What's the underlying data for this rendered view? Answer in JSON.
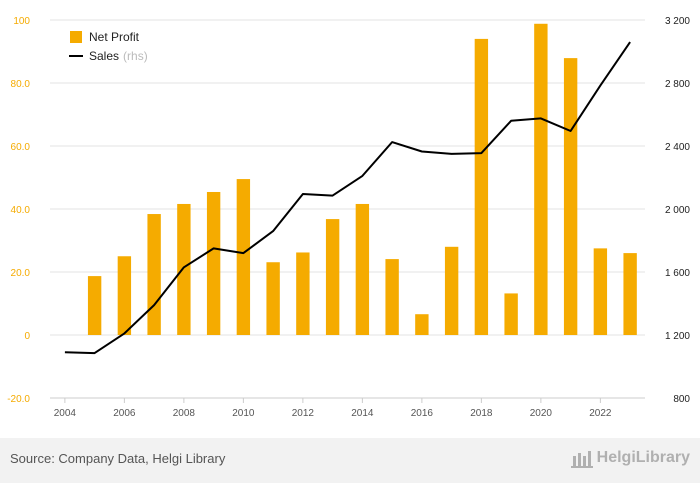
{
  "colors": {
    "bar": "#f5ab00",
    "line": "#000000",
    "left_axis_text": "#f5ab00",
    "right_axis_text": "#222222",
    "grid": "#e3e3e3",
    "footer_bg": "#f2f2f2"
  },
  "legend": {
    "net_profit": "Net Profit",
    "sales": "Sales",
    "sales_suffix": "(rhs)"
  },
  "footer": {
    "source": "Source: Company Data, Helgi Library",
    "brand": "HelgiLibrary",
    "brand_icon": "helgi-library-logo-icon"
  },
  "chart_data": {
    "type": "bar+line",
    "legend_position": "top-left",
    "grid": true,
    "years": [
      2004,
      2005,
      2006,
      2007,
      2008,
      2009,
      2010,
      2011,
      2012,
      2013,
      2014,
      2015,
      2016,
      2017,
      2018,
      2019,
      2020,
      2021,
      2022,
      2023
    ],
    "x_tick_labels": [
      "2004",
      "2006",
      "2008",
      "2010",
      "2012",
      "2014",
      "2016",
      "2018",
      "2020",
      "2022"
    ],
    "series": [
      {
        "name": "Net Profit",
        "type": "bar",
        "axis": "left",
        "values": [
          null,
          18.7,
          25.0,
          38.4,
          41.6,
          45.4,
          49.5,
          23.1,
          26.2,
          36.8,
          41.6,
          24.1,
          6.6,
          28.0,
          94.0,
          13.2,
          98.8,
          87.9,
          27.5,
          26.0
        ]
      },
      {
        "name": "Sales",
        "type": "line",
        "axis": "right",
        "values": [
          1090,
          1085,
          1210,
          1390,
          1630,
          1750,
          1720,
          1860,
          2095,
          2085,
          2210,
          2425,
          2365,
          2350,
          2355,
          2560,
          2575,
          2495,
          2785,
          3060
        ]
      }
    ],
    "y_left": {
      "range": [
        -20,
        100
      ],
      "ticks": [
        "100",
        "80.0",
        "60.0",
        "40.0",
        "20.0",
        "0",
        "-20.0"
      ]
    },
    "y_right": {
      "range": [
        800,
        3200
      ],
      "ticks": [
        "3 200",
        "2 800",
        "2 400",
        "2 000",
        "1 600",
        "1 200",
        "800"
      ]
    }
  }
}
